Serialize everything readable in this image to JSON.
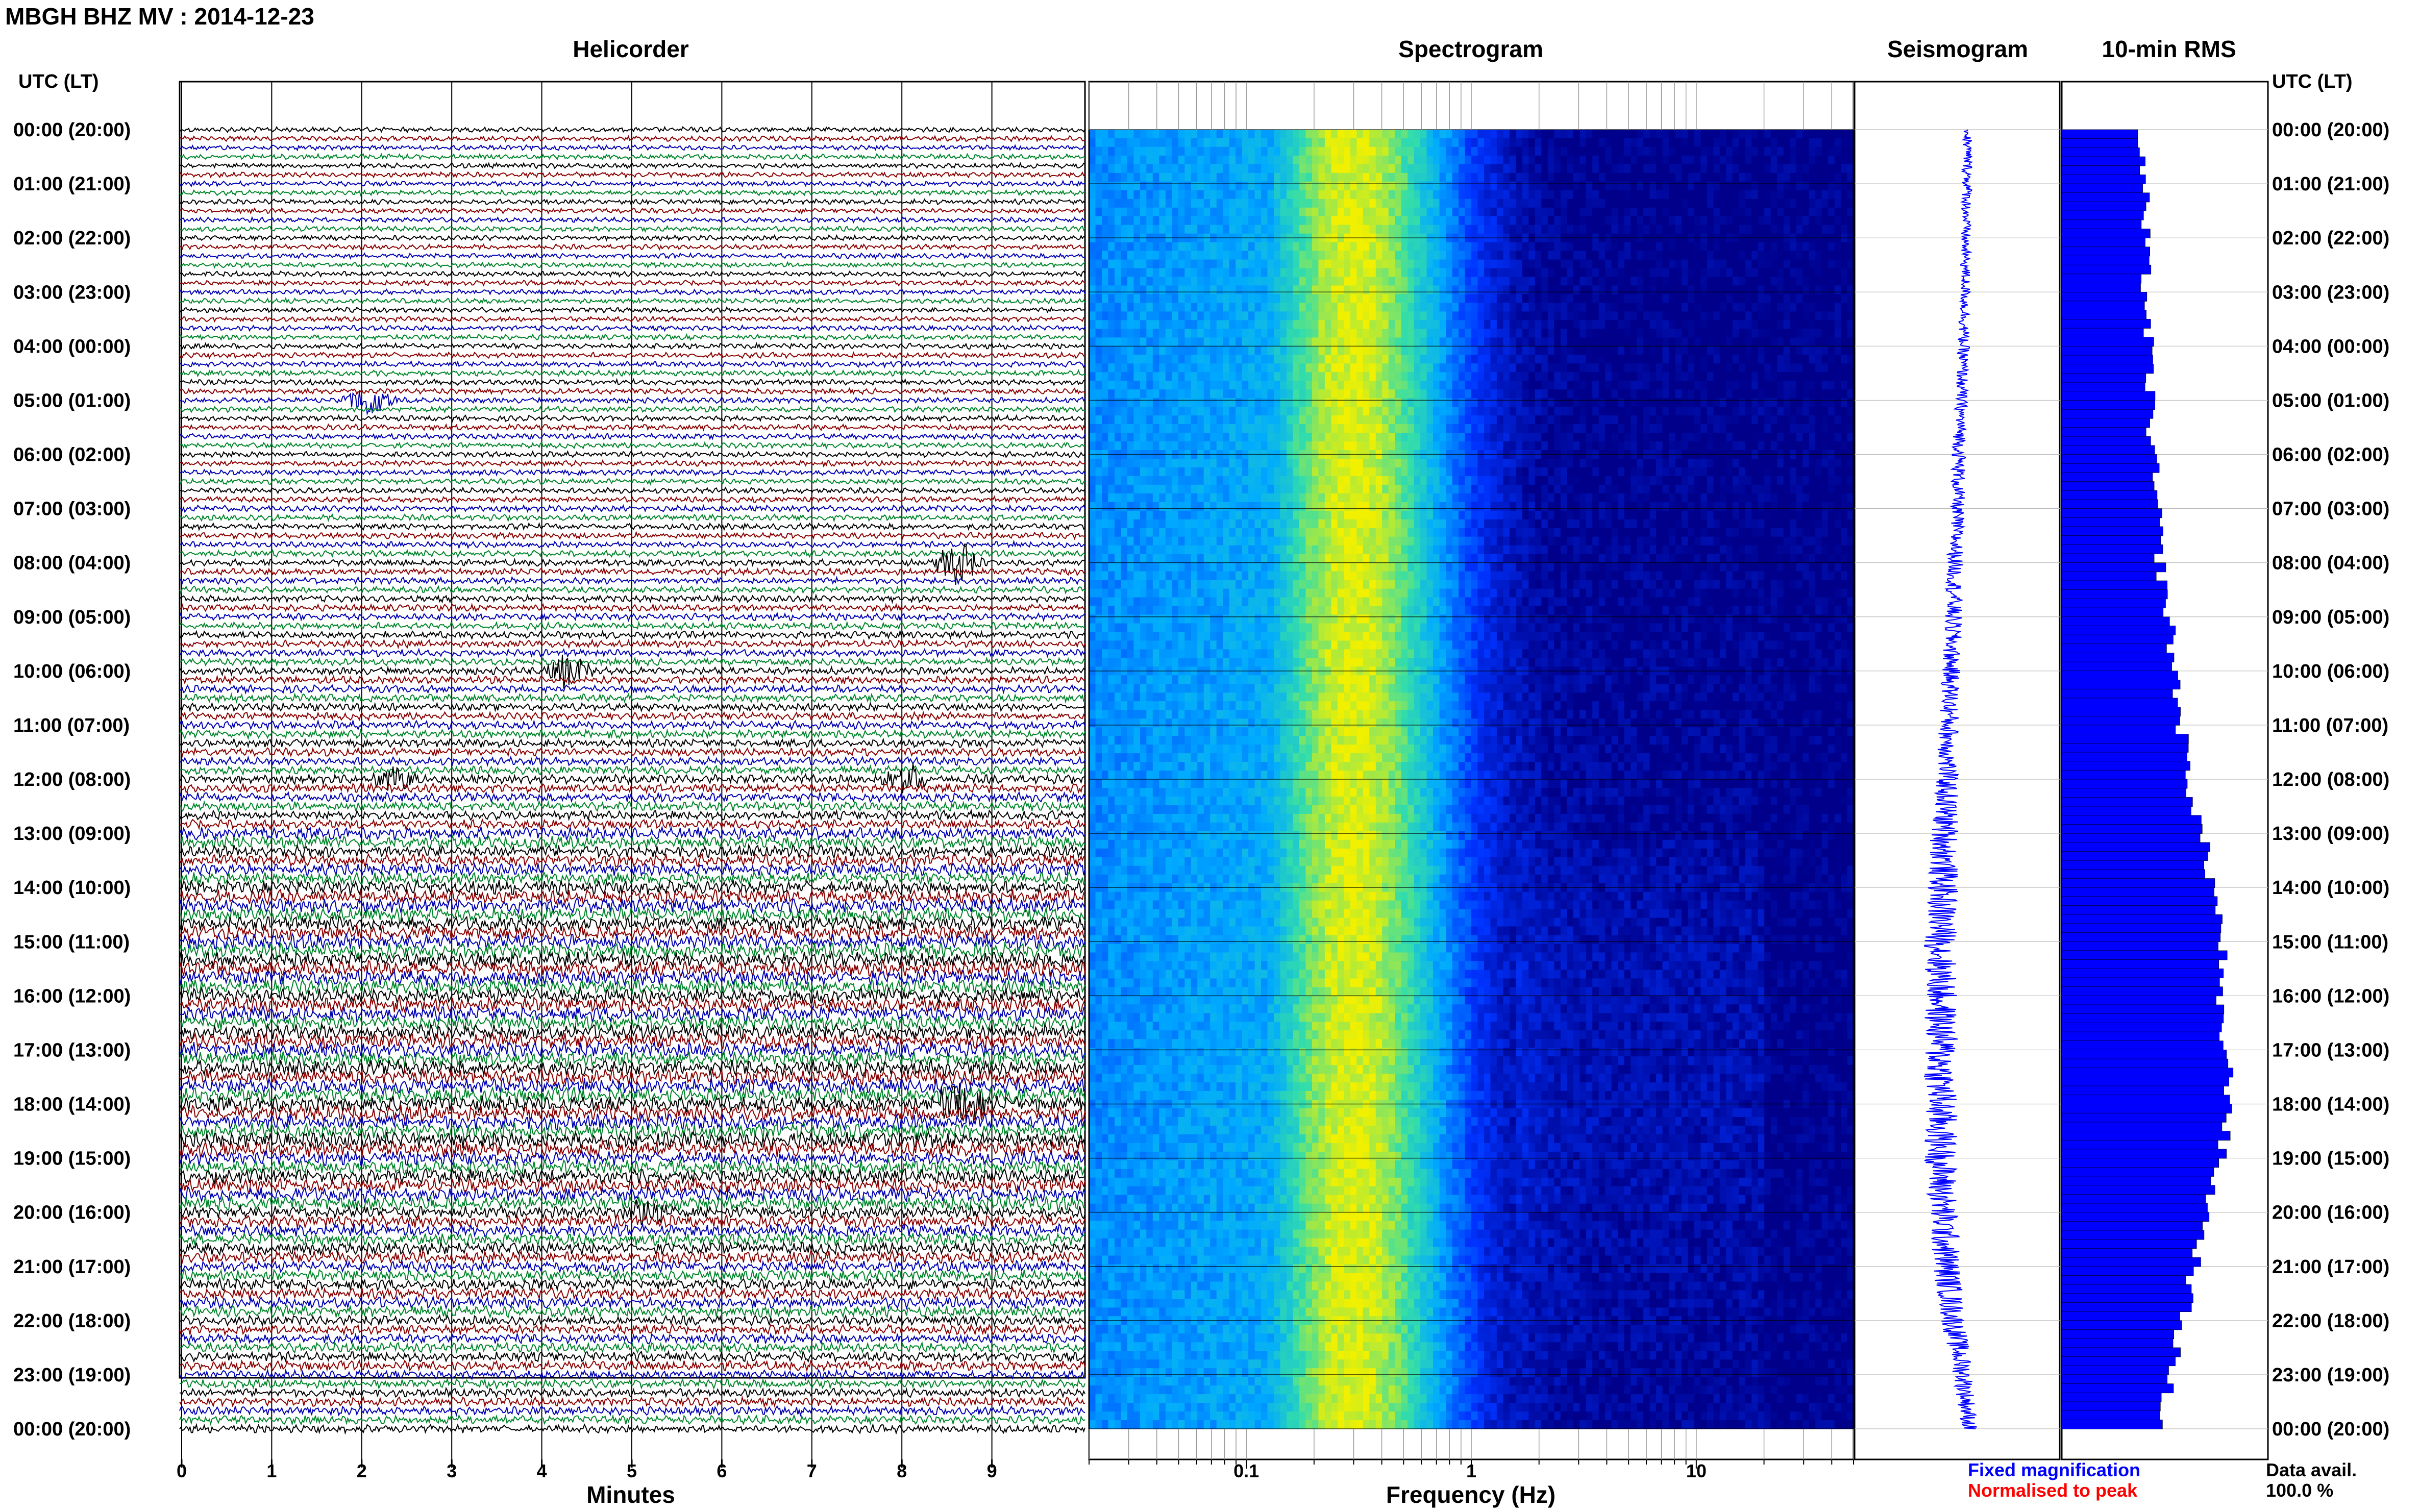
{
  "header": {
    "title": "MBGH BHZ MV : 2014-12-23",
    "time_axis_label_left": "UTC (LT)",
    "time_axis_label_right": "UTC (LT)"
  },
  "panels": {
    "helicorder": {
      "title": "Helicorder",
      "xlabel": "Minutes"
    },
    "spectrogram": {
      "title": "Spectrogram",
      "xlabel": "Frequency (Hz)"
    },
    "seismogram": {
      "title": "Seismogram"
    },
    "rms": {
      "title": "10-min RMS"
    }
  },
  "legend": {
    "fixed": "Fixed magnification",
    "normalised": "Normalised to peak",
    "fixed_color": "#0000ff",
    "normalised_color": "#ff0000"
  },
  "data_avail": {
    "label": "Data avail.",
    "value": "100.0 %"
  },
  "colors": {
    "trace_cycle": [
      "#000000",
      "#8b0000",
      "#0000b4",
      "#00862a"
    ],
    "rms_fill": "#0000ff",
    "grid": "#000000"
  },
  "chart_data": [
    {
      "type": "line",
      "name": "Helicorder",
      "x_ticks": [
        "0",
        "1",
        "2",
        "3",
        "4",
        "5",
        "6",
        "7",
        "8",
        "9"
      ],
      "xlabel": "Minutes",
      "xlim": [
        0,
        10
      ],
      "row_minutes": 10,
      "hour_labels": [
        "00:00 (20:00)",
        "01:00 (21:00)",
        "02:00 (22:00)",
        "03:00 (23:00)",
        "04:00 (00:00)",
        "05:00 (01:00)",
        "06:00 (02:00)",
        "07:00 (03:00)",
        "08:00 (04:00)",
        "09:00 (05:00)",
        "10:00 (06:00)",
        "11:00 (07:00)",
        "12:00 (08:00)",
        "13:00 (09:00)",
        "14:00 (10:00)",
        "15:00 (11:00)",
        "16:00 (12:00)",
        "17:00 (13:00)",
        "18:00 (14:00)",
        "19:00 (15:00)",
        "20:00 (16:00)",
        "21:00 (17:00)",
        "22:00 (18:00)",
        "23:00 (19:00)",
        "00:00 (20:00)"
      ],
      "noise_level_by_hour": [
        1,
        1,
        1,
        1,
        1.1,
        1.1,
        1.1,
        1.2,
        1.3,
        1.4,
        1.5,
        1.6,
        1.8,
        2.4,
        2.8,
        3.0,
        2.9,
        3.0,
        3.1,
        2.8,
        2.4,
        2.2,
        1.9,
        1.7,
        1.6
      ],
      "events": [
        {
          "hour": 5,
          "minute": 2.1,
          "amp": 1.4
        },
        {
          "hour": 8,
          "minute": 8.6,
          "amp": 1.8
        },
        {
          "hour": 10,
          "minute": 4.3,
          "amp": 1.5
        },
        {
          "hour": 12,
          "minute": 8.0,
          "amp": 1.3
        },
        {
          "hour": 12,
          "minute": 2.4,
          "amp": 1.1
        },
        {
          "hour": 18,
          "minute": 8.6,
          "amp": 2.0
        },
        {
          "hour": 20,
          "minute": 5.2,
          "amp": 1.2
        }
      ]
    },
    {
      "type": "heatmap",
      "name": "Spectrogram",
      "xlabel": "Frequency (Hz)",
      "x_scale": "log",
      "xlim": [
        0.02,
        50
      ],
      "x_ticks": [
        "0.1",
        "1",
        "10"
      ],
      "peak_frequency_hz": 0.3,
      "colormap": [
        "#00008b",
        "#0033ff",
        "#00aaff",
        "#33ddaa",
        "#f0f000"
      ]
    },
    {
      "type": "line",
      "name": "Seismogram",
      "series": [
        {
          "name": "Fixed magnification",
          "color": "#0000ff"
        }
      ],
      "amplitude_by_hour": [
        0.05,
        0.05,
        0.05,
        0.05,
        0.06,
        0.06,
        0.07,
        0.07,
        0.08,
        0.09,
        0.09,
        0.1,
        0.11,
        0.14,
        0.15,
        0.16,
        0.16,
        0.17,
        0.17,
        0.16,
        0.15,
        0.14,
        0.12,
        0.1,
        0.08
      ],
      "offset_by_hour": [
        0.55,
        0.55,
        0.54,
        0.54,
        0.53,
        0.52,
        0.51,
        0.5,
        0.49,
        0.48,
        0.47,
        0.46,
        0.45,
        0.44,
        0.43,
        0.42,
        0.42,
        0.42,
        0.42,
        0.42,
        0.43,
        0.45,
        0.48,
        0.53,
        0.56
      ]
    },
    {
      "type": "bar",
      "name": "10-min RMS",
      "orientation": "horizontal",
      "values_by_hour": [
        38,
        40,
        40,
        41,
        42,
        43,
        44,
        46,
        48,
        52,
        55,
        58,
        62,
        68,
        74,
        78,
        75,
        80,
        82,
        76,
        70,
        64,
        58,
        52,
        48
      ],
      "xlim": [
        0,
        100
      ]
    }
  ]
}
